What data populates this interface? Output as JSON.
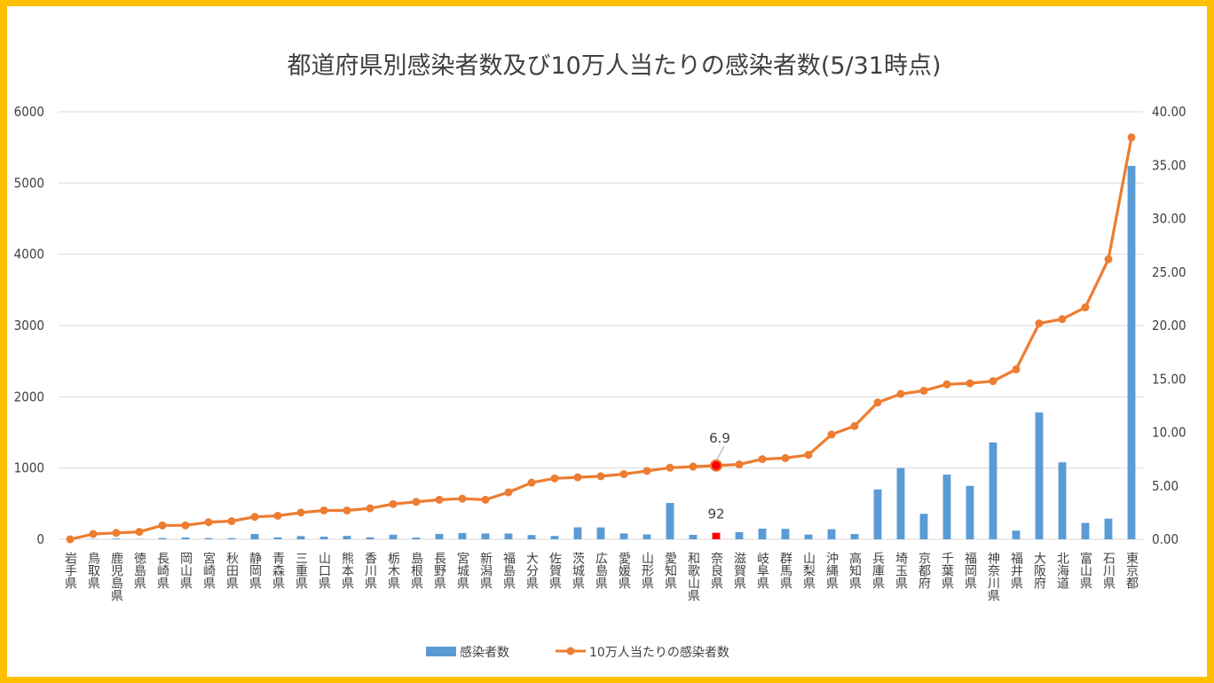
{
  "chart_data": {
    "type": "bar+line",
    "title": "都道府県別感染者数及び10万人当たりの感染者数(5/31時点)",
    "categories": [
      "岩手県",
      "鳥取県",
      "鹿児島県",
      "徳島県",
      "長崎県",
      "岡山県",
      "宮崎県",
      "秋田県",
      "静岡県",
      "青森県",
      "三重県",
      "山口県",
      "熊本県",
      "香川県",
      "栃木県",
      "島根県",
      "長野県",
      "宮城県",
      "新潟県",
      "福島県",
      "大分県",
      "佐賀県",
      "茨城県",
      "広島県",
      "愛媛県",
      "山形県",
      "愛知県",
      "和歌山県",
      "奈良県",
      "滋賀県",
      "岐阜県",
      "群馬県",
      "山梨県",
      "沖縄県",
      "高知県",
      "兵庫県",
      "埼玉県",
      "京都府",
      "千葉県",
      "福岡県",
      "神奈川県",
      "福井県",
      "大阪府",
      "北海道",
      "富山県",
      "石川県",
      "東京都"
    ],
    "series": [
      {
        "name": "感染者数",
        "type": "bar",
        "axis": "left",
        "color": "#5b9bd5",
        "highlight": {
          "category": "奈良県",
          "color": "#ff0000",
          "label": "92"
        },
        "values": [
          0,
          3,
          10,
          5,
          17,
          25,
          17,
          16,
          75,
          27,
          45,
          37,
          48,
          28,
          65,
          24,
          76,
          88,
          82,
          81,
          60,
          47,
          168,
          167,
          82,
          69,
          510,
          63,
          92,
          100,
          150,
          147,
          67,
          142,
          74,
          700,
          1000,
          358,
          908,
          750,
          1360,
          122,
          1780,
          1080,
          230,
          290,
          5240
        ]
      },
      {
        "name": "10万人当たりの感染者数",
        "type": "line",
        "axis": "right",
        "color": "#ed7d31",
        "highlight": {
          "category": "奈良県",
          "color": "#ff0000",
          "label": "6.9"
        },
        "values": [
          0.0,
          0.5,
          0.6,
          0.7,
          1.3,
          1.3,
          1.6,
          1.7,
          2.1,
          2.2,
          2.5,
          2.7,
          2.7,
          2.9,
          3.3,
          3.5,
          3.7,
          3.8,
          3.7,
          4.4,
          5.3,
          5.7,
          5.8,
          5.9,
          6.1,
          6.4,
          6.7,
          6.8,
          6.9,
          7.0,
          7.5,
          7.6,
          7.9,
          9.8,
          10.6,
          12.8,
          13.6,
          13.9,
          14.5,
          14.6,
          14.8,
          15.9,
          20.2,
          20.6,
          21.7,
          26.2,
          37.6
        ]
      }
    ],
    "y_left": {
      "min": 0,
      "max": 6000,
      "ticks": [
        "0",
        "1000",
        "2000",
        "3000",
        "4000",
        "5000",
        "6000"
      ]
    },
    "y_right": {
      "min": 0,
      "max": 40,
      "ticks": [
        "0.00",
        "5.00",
        "10.00",
        "15.00",
        "20.00",
        "25.00",
        "30.00",
        "35.00",
        "40.00"
      ]
    },
    "grid": true,
    "legend_position": "bottom"
  }
}
